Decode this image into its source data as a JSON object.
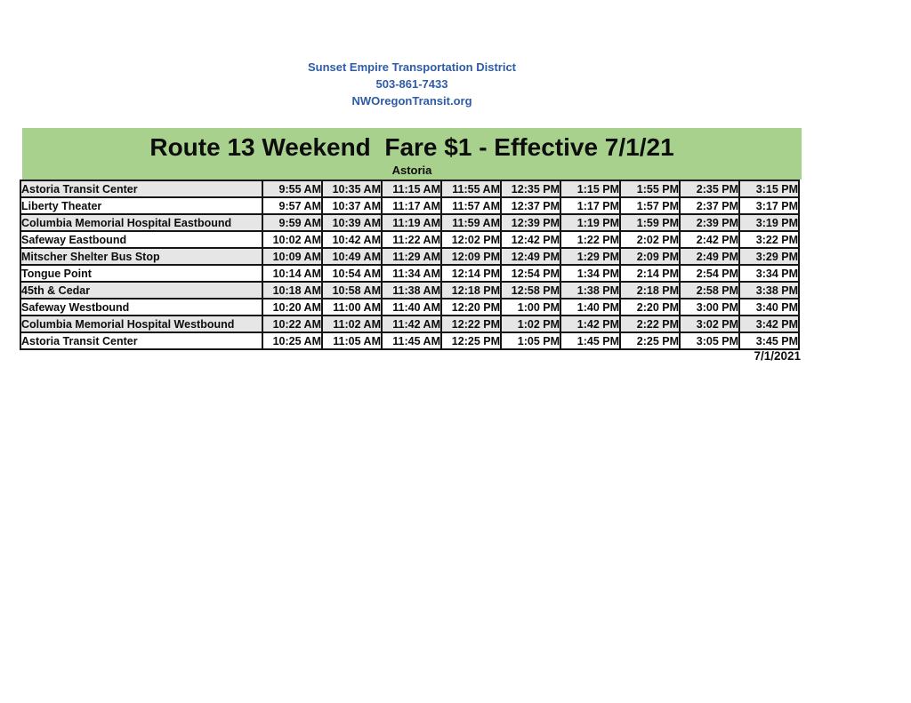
{
  "contact": {
    "org_name": "Sunset Empire Transportation District",
    "phone": "503-861-7433",
    "website": "NWOregonTransit.org"
  },
  "banner": {
    "title": "Route 13 Weekend  Fare $1 - Effective 7/1/21",
    "subtitle": "Astoria"
  },
  "schedule": {
    "rows": [
      {
        "stop": "Astoria Transit Center",
        "times": [
          "9:55 AM",
          "10:35 AM",
          "11:15 AM",
          "11:55 AM",
          "12:35 PM",
          "1:15 PM",
          "1:55 PM",
          "2:35 PM",
          "3:15 PM"
        ]
      },
      {
        "stop": "Liberty Theater",
        "times": [
          "9:57 AM",
          "10:37 AM",
          "11:17 AM",
          "11:57 AM",
          "12:37 PM",
          "1:17 PM",
          "1:57 PM",
          "2:37 PM",
          "3:17 PM"
        ]
      },
      {
        "stop": "Columbia Memorial Hospital Eastbound",
        "times": [
          "9:59 AM",
          "10:39 AM",
          "11:19 AM",
          "11:59 AM",
          "12:39 PM",
          "1:19 PM",
          "1:59 PM",
          "2:39 PM",
          "3:19 PM"
        ]
      },
      {
        "stop": "Safeway Eastbound",
        "times": [
          "10:02 AM",
          "10:42 AM",
          "11:22 AM",
          "12:02 PM",
          "12:42 PM",
          "1:22 PM",
          "2:02 PM",
          "2:42 PM",
          "3:22 PM"
        ]
      },
      {
        "stop": "Mitscher Shelter Bus Stop",
        "times": [
          "10:09 AM",
          "10:49 AM",
          "11:29 AM",
          "12:09 PM",
          "12:49 PM",
          "1:29 PM",
          "2:09 PM",
          "2:49 PM",
          "3:29 PM"
        ]
      },
      {
        "stop": "Tongue Point",
        "times": [
          "10:14 AM",
          "10:54 AM",
          "11:34 AM",
          "12:14 PM",
          "12:54 PM",
          "1:34 PM",
          "2:14 PM",
          "2:54 PM",
          "3:34 PM"
        ]
      },
      {
        "stop": "45th & Cedar",
        "times": [
          "10:18 AM",
          "10:58 AM",
          "11:38 AM",
          "12:18 PM",
          "12:58 PM",
          "1:38 PM",
          "2:18 PM",
          "2:58 PM",
          "3:38 PM"
        ]
      },
      {
        "stop": "Safeway Westbound",
        "times": [
          "10:20 AM",
          "11:00 AM",
          "11:40 AM",
          "12:20 PM",
          "1:00 PM",
          "1:40 PM",
          "2:20 PM",
          "3:00 PM",
          "3:40 PM"
        ]
      },
      {
        "stop": "Columbia Memorial Hospital Westbound",
        "times": [
          "10:22 AM",
          "11:02 AM",
          "11:42 AM",
          "12:22 PM",
          "1:02 PM",
          "1:42 PM",
          "2:22 PM",
          "3:02 PM",
          "3:42 PM"
        ]
      },
      {
        "stop": "Astoria Transit Center",
        "times": [
          "10:25 AM",
          "11:05 AM",
          "11:45 AM",
          "12:25 PM",
          "1:05 PM",
          "1:45 PM",
          "2:25 PM",
          "3:05 PM",
          "3:45 PM"
        ]
      }
    ]
  },
  "footer": {
    "date": "7/1/2021"
  },
  "colors": {
    "banner_green": "#a9d18e",
    "row_alt_gray": "#e7e6e6",
    "header_blue": "#2e5ca6",
    "border_black": "#151515"
  }
}
